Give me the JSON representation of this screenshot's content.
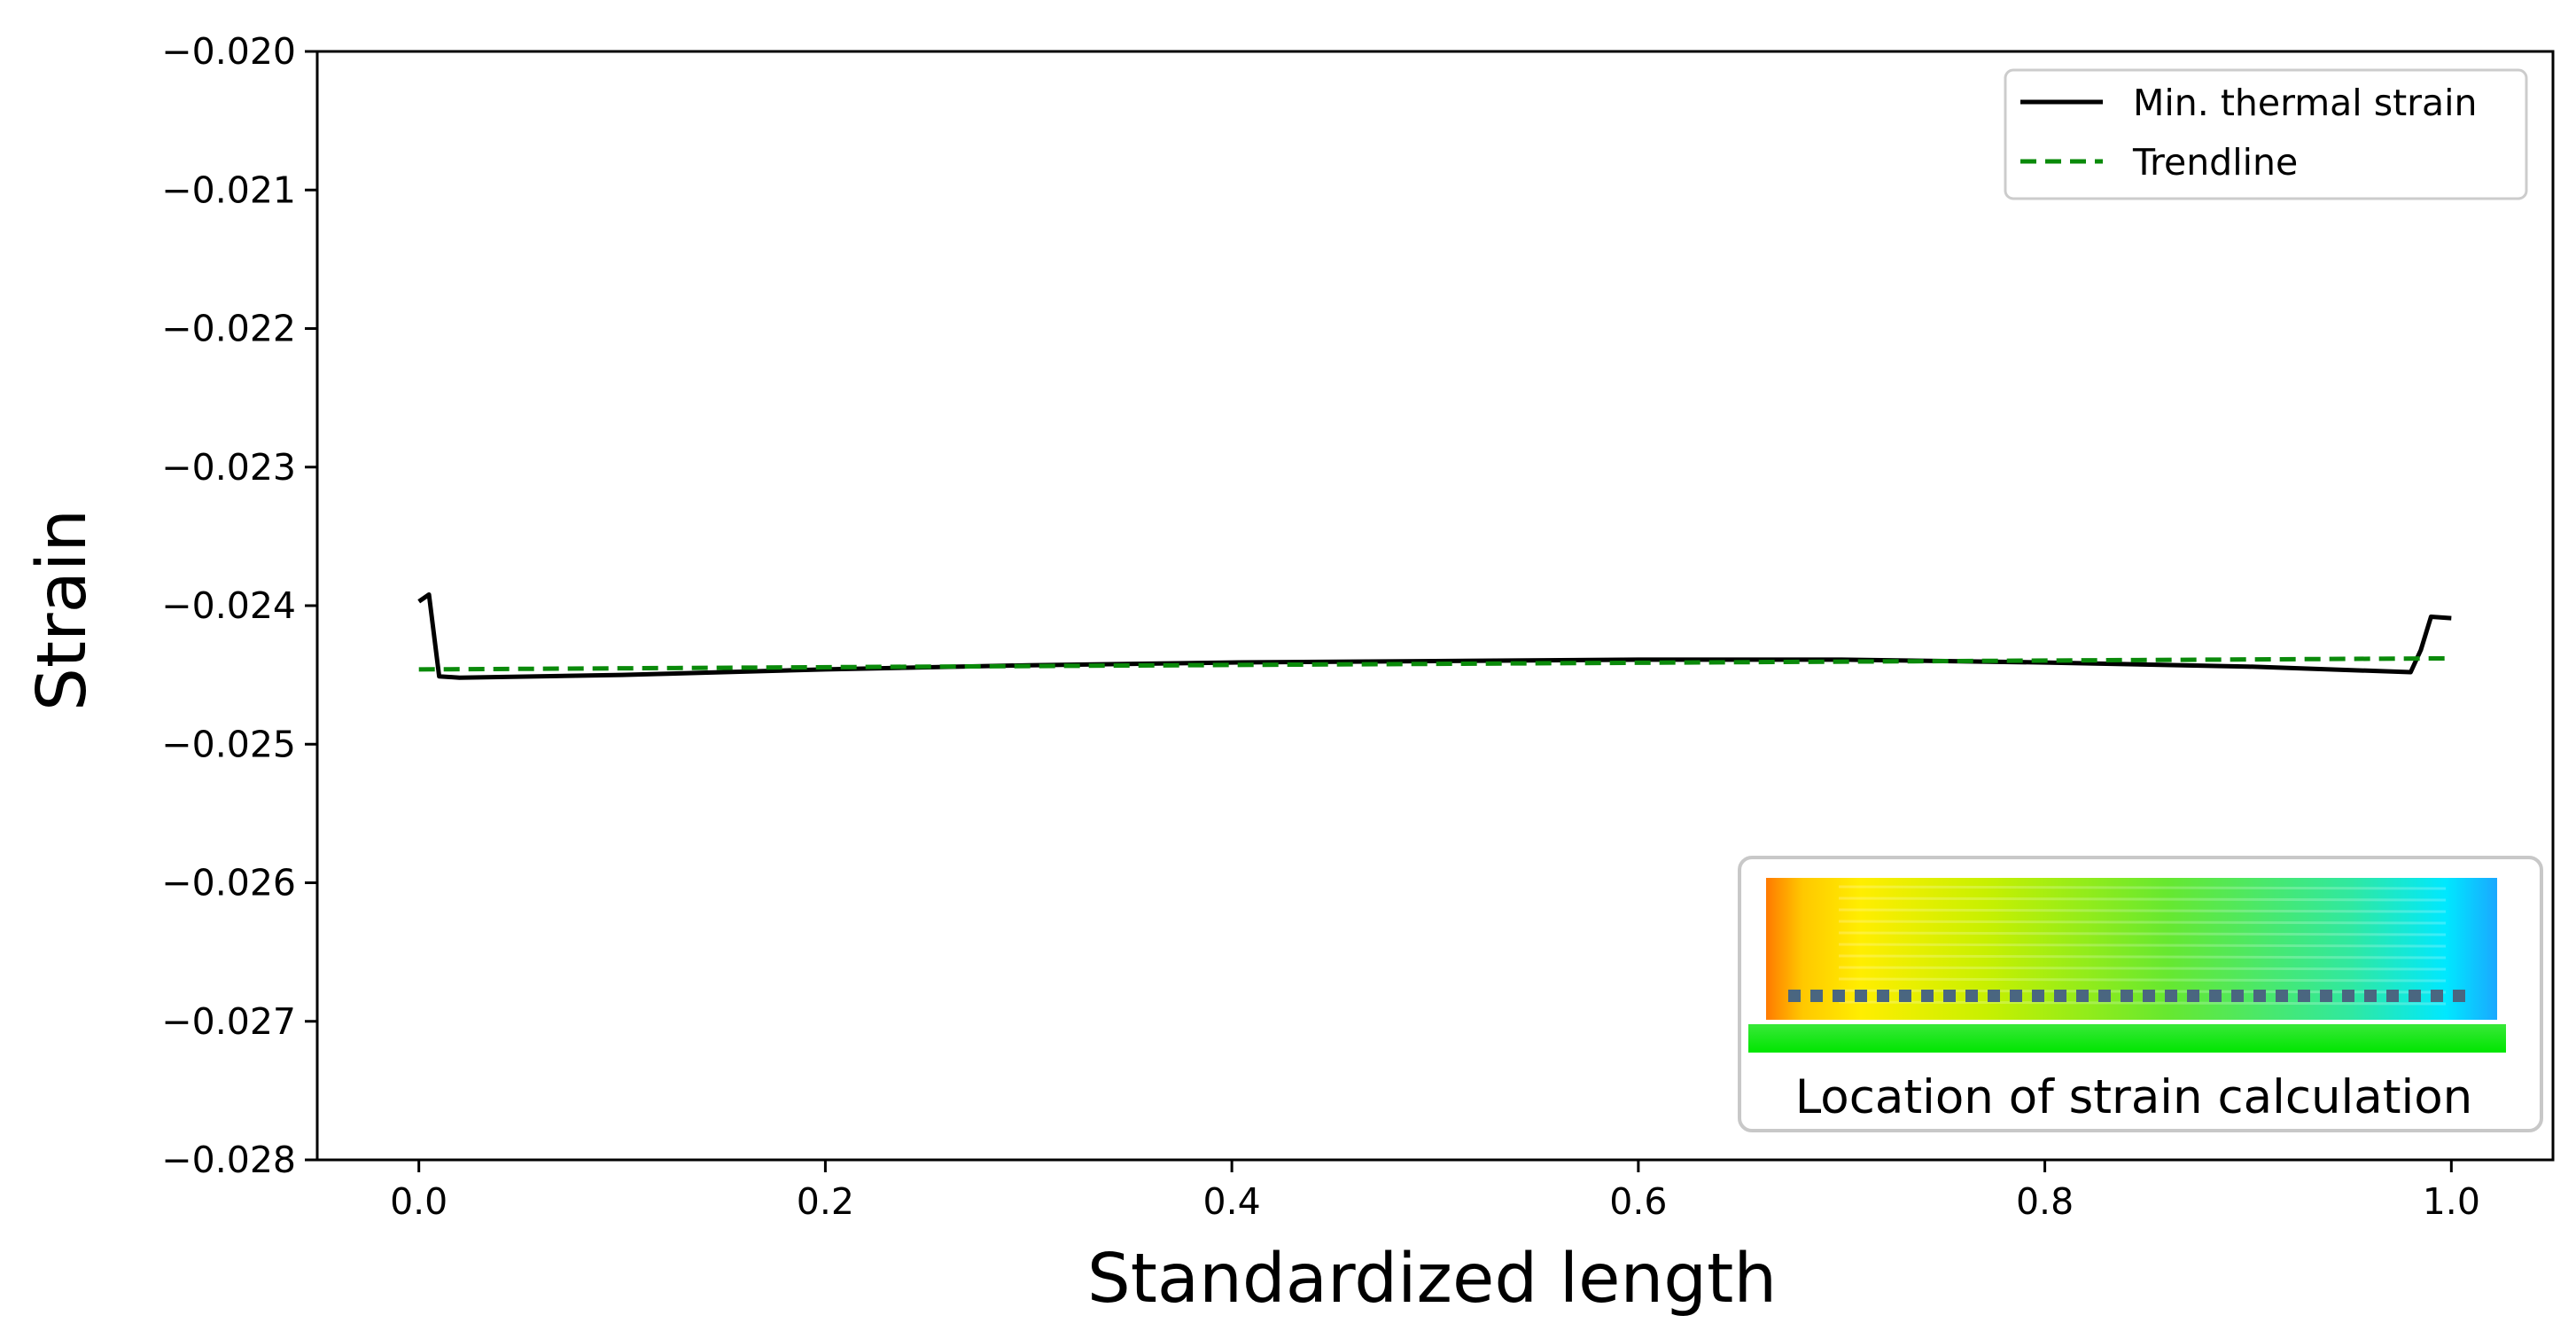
{
  "chart_data": {
    "type": "line",
    "title": "",
    "xlabel": "Standardized length",
    "ylabel": "Strain",
    "xlim": [
      -0.05,
      1.05
    ],
    "ylim": [
      -0.028,
      -0.02
    ],
    "x_ticks": [
      0.0,
      0.2,
      0.4,
      0.6,
      0.8,
      1.0
    ],
    "x_tick_labels": [
      "0.0",
      "0.2",
      "0.4",
      "0.6",
      "0.8",
      "1.0"
    ],
    "y_ticks": [
      -0.02,
      -0.021,
      -0.022,
      -0.023,
      -0.024,
      -0.025,
      -0.026,
      -0.027,
      -0.028
    ],
    "y_tick_labels": [
      "−0.020",
      "−0.021",
      "−0.022",
      "−0.023",
      "−0.024",
      "−0.025",
      "−0.026",
      "−0.027",
      "−0.028"
    ],
    "grid": false,
    "legend_position": "top-right",
    "series": [
      {
        "name": "Min. thermal strain",
        "style": "solid",
        "color": "#000000",
        "x": [
          0.0,
          0.005,
          0.01,
          0.02,
          0.1,
          0.2,
          0.3,
          0.4,
          0.5,
          0.6,
          0.7,
          0.8,
          0.9,
          0.98,
          0.985,
          0.99,
          1.0
        ],
        "y": [
          -0.02397,
          -0.02392,
          -0.02451,
          -0.02452,
          -0.0245,
          -0.02446,
          -0.02443,
          -0.02441,
          -0.0244,
          -0.02439,
          -0.02439,
          -0.02441,
          -0.02444,
          -0.02448,
          -0.02432,
          -0.02408,
          -0.02409
        ]
      },
      {
        "name": "Trendline",
        "style": "dashed",
        "color": "#0a8a0a",
        "x": [
          0.0,
          1.0
        ],
        "y": [
          -0.02446,
          -0.02438
        ]
      }
    ],
    "inset": {
      "caption": "Location of strain calculation"
    }
  }
}
